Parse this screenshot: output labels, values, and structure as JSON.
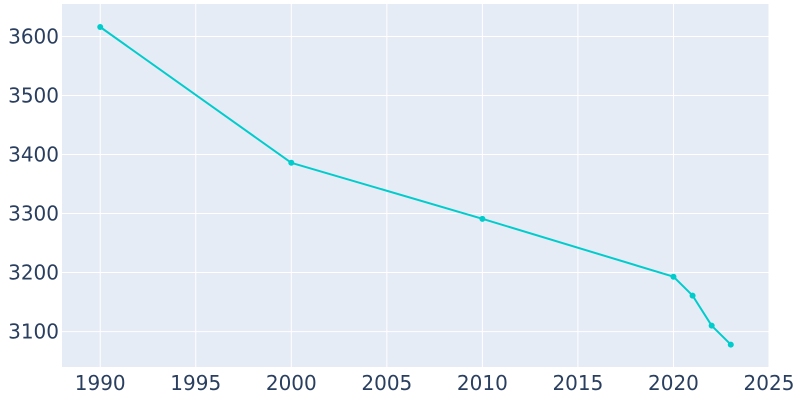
{
  "chart_data": {
    "type": "line",
    "title": "",
    "xlabel": "",
    "ylabel": "",
    "xlim": [
      1988,
      2025
    ],
    "ylim": [
      3040,
      3655
    ],
    "grid": true,
    "x_ticks": [
      "1990",
      "1995",
      "2000",
      "2005",
      "2010",
      "2015",
      "2020",
      "2025"
    ],
    "y_ticks": [
      "3100",
      "3200",
      "3300",
      "3400",
      "3500",
      "3600"
    ],
    "series": [
      {
        "color": "#00cccc",
        "x": [
          1990,
          2000,
          2010,
          2020,
          2021,
          2022,
          2023
        ],
        "y": [
          3616,
          3386,
          3291,
          3193,
          3161,
          3110,
          3078
        ]
      }
    ],
    "colors": {
      "plot_background": "#e5ecf6",
      "grid": "#ffffff",
      "text": "#2a3f5f"
    }
  }
}
